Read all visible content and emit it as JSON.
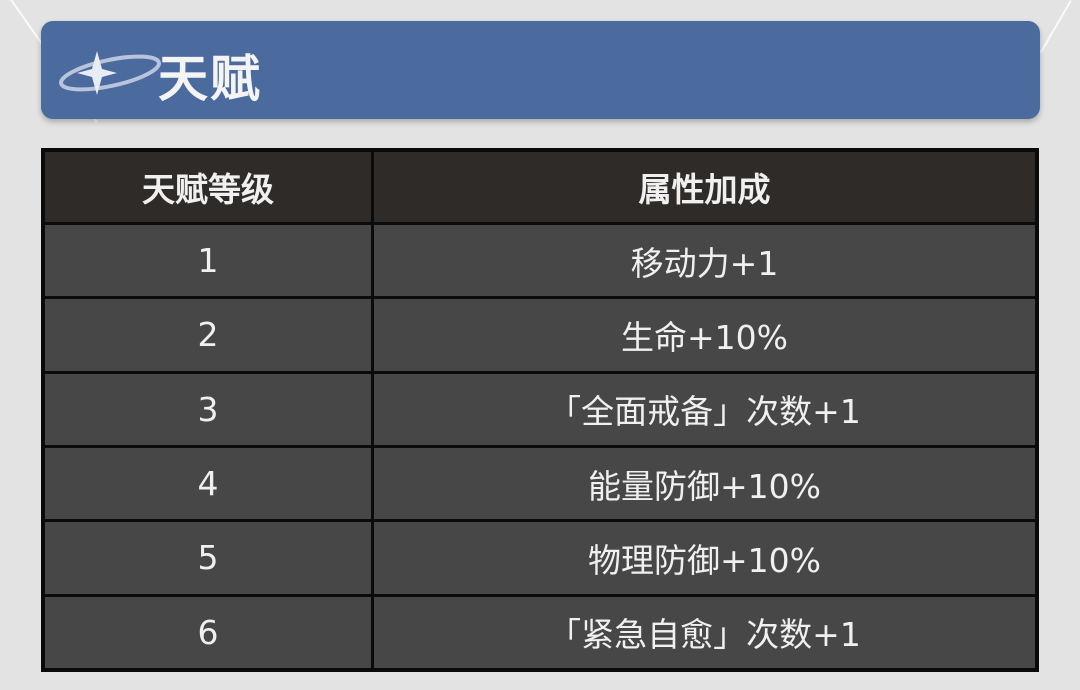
{
  "title": {
    "text": "天赋",
    "icon": "star-orbit-icon"
  },
  "table": {
    "headers": [
      "天赋等级",
      "属性加成"
    ],
    "rows": [
      {
        "level": "1",
        "bonus": "移动力+1"
      },
      {
        "level": "2",
        "bonus": "生命+10%"
      },
      {
        "level": "3",
        "bonus": "「全面戒备」次数+1"
      },
      {
        "level": "4",
        "bonus": "能量防御+10%"
      },
      {
        "level": "5",
        "bonus": "物理防御+10%"
      },
      {
        "level": "6",
        "bonus": "「紧急自愈」次数+1"
      }
    ]
  },
  "colors": {
    "title_bar": "#4b6a9e",
    "header_row": "#2f2b29",
    "body_row": "#474747",
    "background": "#e3e3e4"
  }
}
